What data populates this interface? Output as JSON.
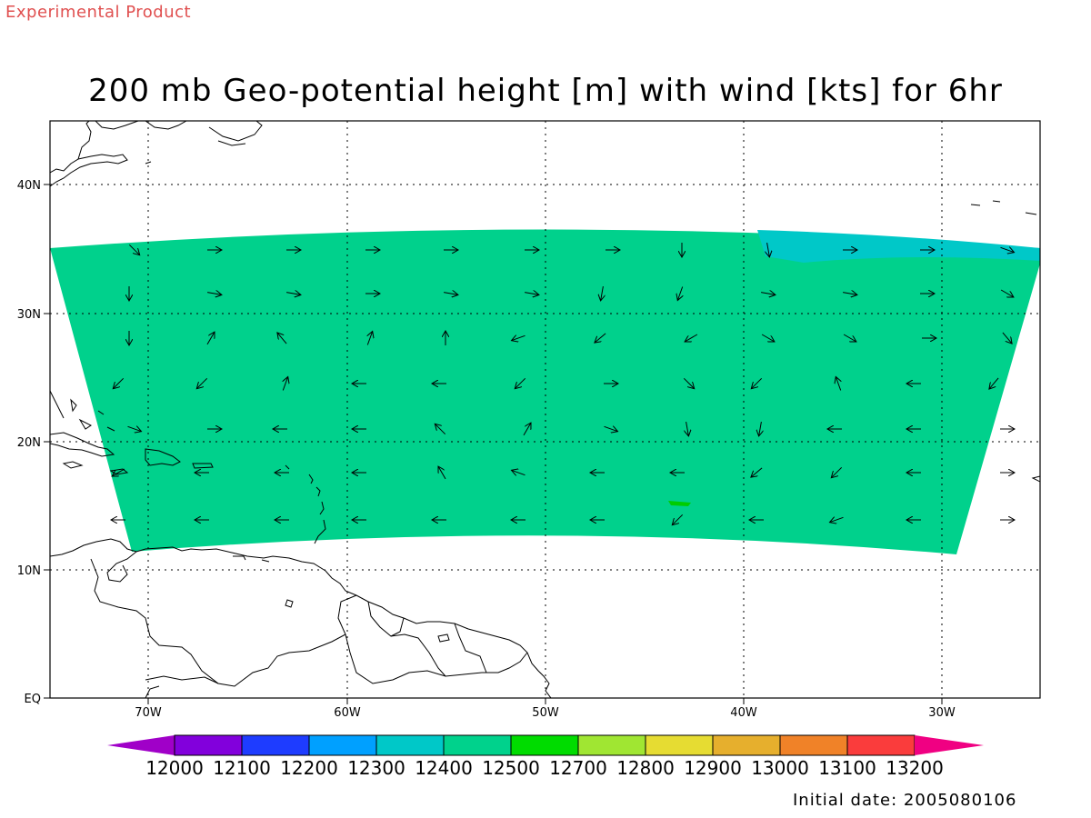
{
  "header": {
    "experimental_label": "Experimental Product",
    "title": "200 mb Geo-potential height [m] with wind [kts] for 6hr"
  },
  "map": {
    "lon_labels": [
      "70W",
      "60W",
      "50W",
      "40W",
      "30W"
    ],
    "lat_labels": [
      "40N",
      "30N",
      "20N",
      "10N",
      "EQ"
    ],
    "fill_colors": {
      "main_band": "#00d18c",
      "high_region": "#00c8c8",
      "small_patch": "#00cc00"
    },
    "grid": "dotted"
  },
  "colorbar": {
    "labels": [
      "12000",
      "12100",
      "12200",
      "12300",
      "12400",
      "12500",
      "12700",
      "12800",
      "12900",
      "13000",
      "13100",
      "13200"
    ],
    "colors": [
      "#a000c8",
      "#8200dc",
      "#1e3cff",
      "#00a0ff",
      "#00c8c8",
      "#00d28c",
      "#00dc00",
      "#a0e632",
      "#e6dc32",
      "#e6af2d",
      "#f08228",
      "#fa3c3c",
      "#f00082"
    ]
  },
  "footer": {
    "initial_date": "Initial date: 2005080106"
  }
}
